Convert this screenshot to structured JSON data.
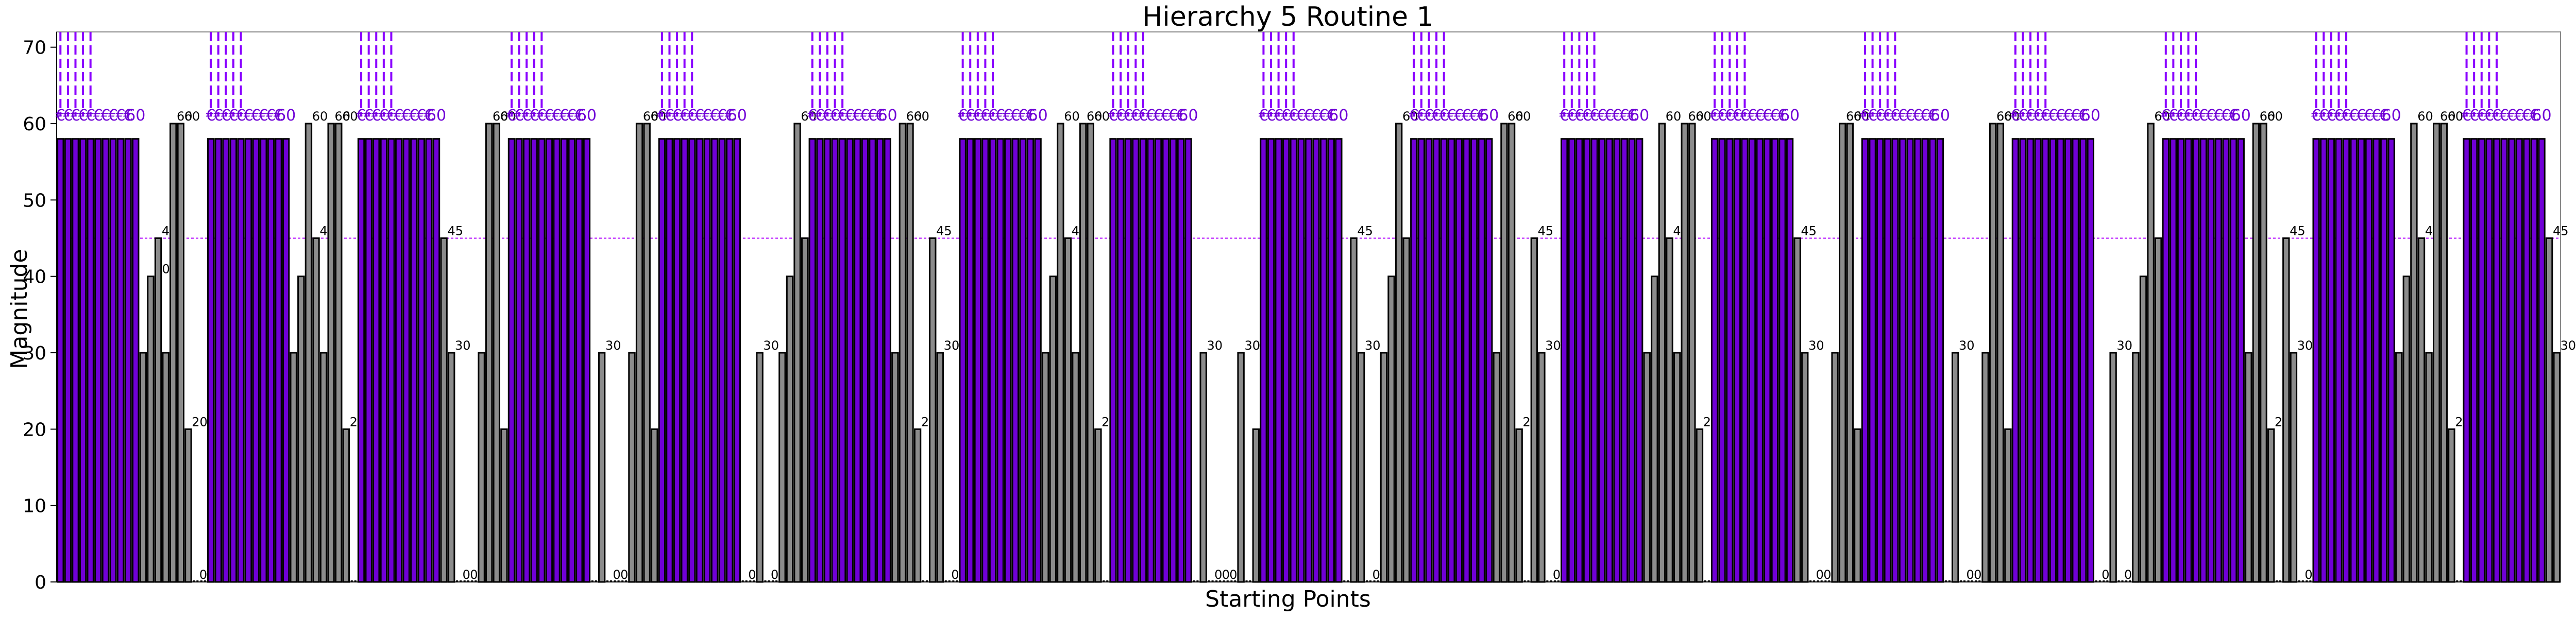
{
  "chart_data": {
    "type": "bar",
    "title": "Hierarchy 5 Routine 1",
    "xlabel": "Starting Points",
    "ylabel": "Magnitude",
    "ylim": [
      0,
      72
    ],
    "y_ticks": [
      0,
      10,
      20,
      30,
      40,
      50,
      60,
      70
    ],
    "reference_line": 45,
    "grid": false,
    "value_labels": true,
    "colors": {
      "selected": "#7000d6",
      "unselected": "#8c8c8c",
      "edge": "#000000",
      "reference": "#b000ff",
      "guides": "#8a00ff"
    },
    "purple_label": "€",
    "purple_end_label": "60",
    "section_pattern": [
      [
        30,
        40,
        45,
        30,
        60,
        60,
        20,
        0,
        0
      ],
      [
        30,
        40,
        60,
        45,
        30,
        60,
        60,
        20,
        0
      ],
      [
        45,
        30,
        0,
        0,
        0,
        30,
        60,
        60,
        20
      ],
      [
        0,
        30,
        0,
        0,
        0,
        30,
        60,
        60,
        20
      ],
      [
        0,
        0,
        30,
        0,
        0,
        30,
        40,
        60,
        45
      ],
      [
        30,
        60,
        60,
        20,
        0,
        45,
        30,
        0,
        0
      ],
      [
        30,
        40,
        60,
        45,
        30,
        60,
        60,
        20,
        0
      ],
      [
        0,
        30,
        0,
        0,
        0,
        0,
        30,
        0,
        20
      ],
      [
        0,
        45,
        30,
        0,
        0,
        30,
        40,
        60,
        45
      ],
      [
        30,
        60,
        60,
        20,
        0,
        45,
        30,
        0,
        0
      ],
      [
        30,
        40,
        60,
        45,
        30,
        60,
        60,
        20,
        0
      ],
      [
        45,
        30,
        0,
        0,
        0,
        30,
        60,
        60,
        20
      ],
      [
        0,
        30,
        0,
        0,
        0,
        30,
        60,
        60,
        20
      ],
      [
        0,
        0,
        30,
        0,
        0,
        30,
        40,
        60,
        45
      ],
      [
        30,
        60,
        60,
        20,
        0,
        45,
        30,
        0,
        0
      ],
      [
        30,
        40,
        60,
        45,
        30,
        60,
        60,
        20,
        0
      ],
      [
        45,
        30
      ]
    ],
    "purple_run": 11,
    "purple_value": 58
  }
}
